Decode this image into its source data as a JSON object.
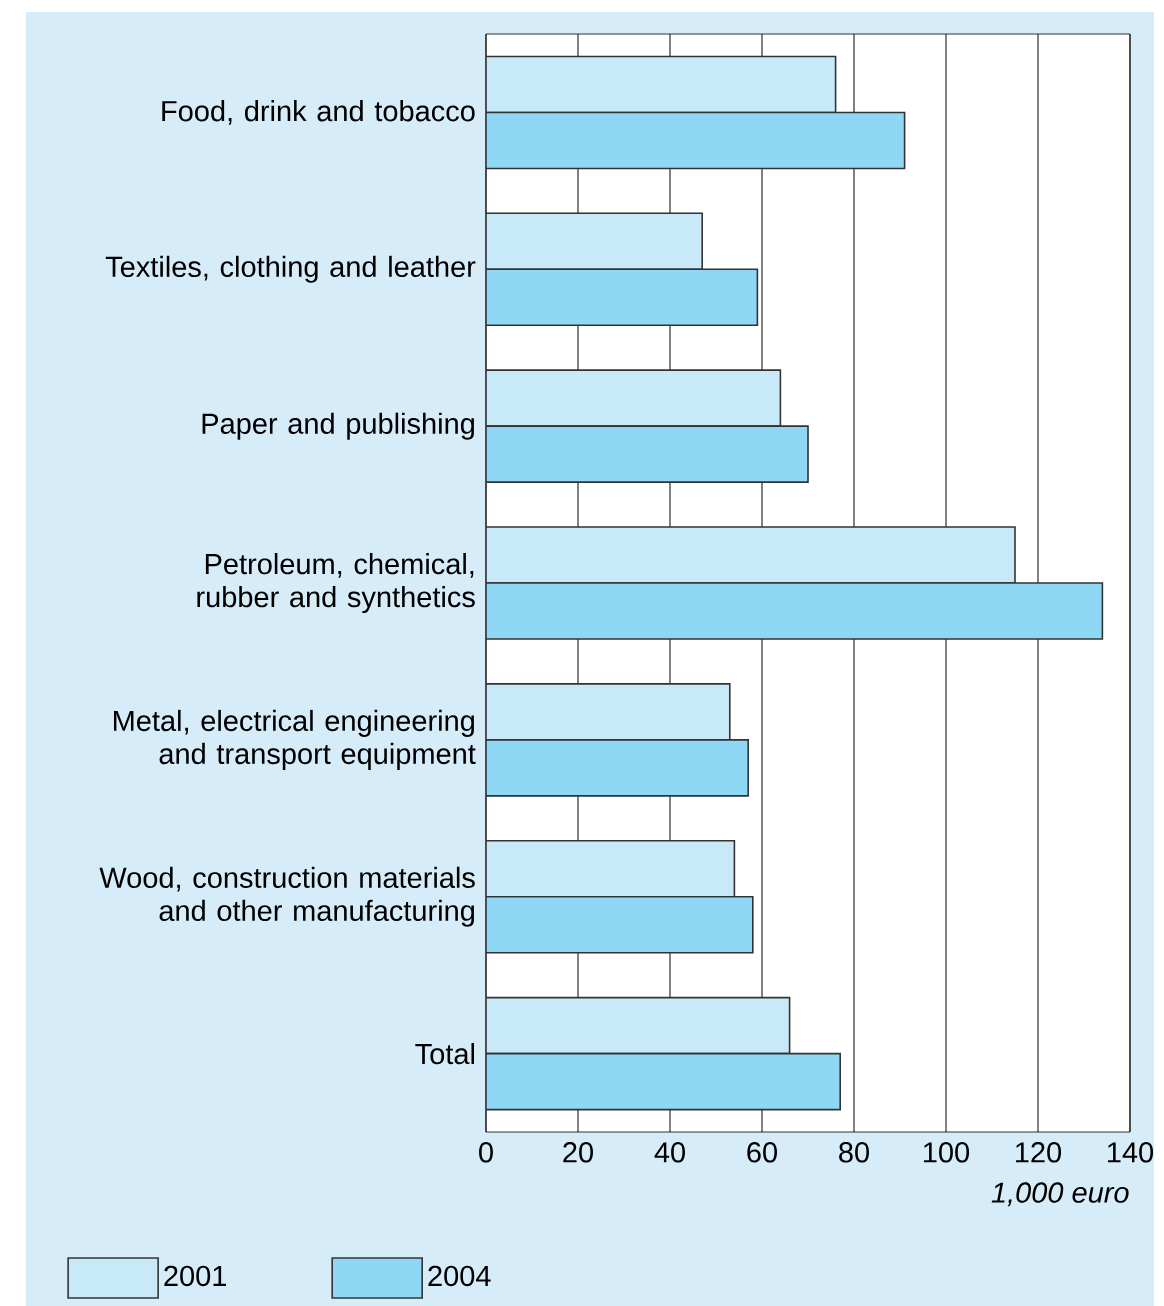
{
  "chart_data": {
    "type": "bar",
    "orientation": "horizontal",
    "categories": [
      "Food, drink and tobacco",
      "Textiles, clothing and leather",
      "Paper and publishing",
      "Petroleum, chemical, rubber and synthetics",
      "Metal, electrical engineering and transport equipment",
      "Wood, construction materials and other manufacturing",
      "Total"
    ],
    "series": [
      {
        "name": "2001",
        "color": "#c8e9f8",
        "values": [
          76,
          47,
          64,
          115,
          53,
          54,
          66
        ]
      },
      {
        "name": "2004",
        "color": "#8fd8f5",
        "values": [
          91,
          59,
          70,
          134,
          57,
          58,
          77
        ]
      }
    ],
    "xlim": [
      0,
      140
    ],
    "xticks": [
      0,
      20,
      40,
      60,
      80,
      100,
      120,
      140
    ],
    "xlabel": "1,000 euro",
    "grid": "x",
    "legend": "bottom"
  }
}
